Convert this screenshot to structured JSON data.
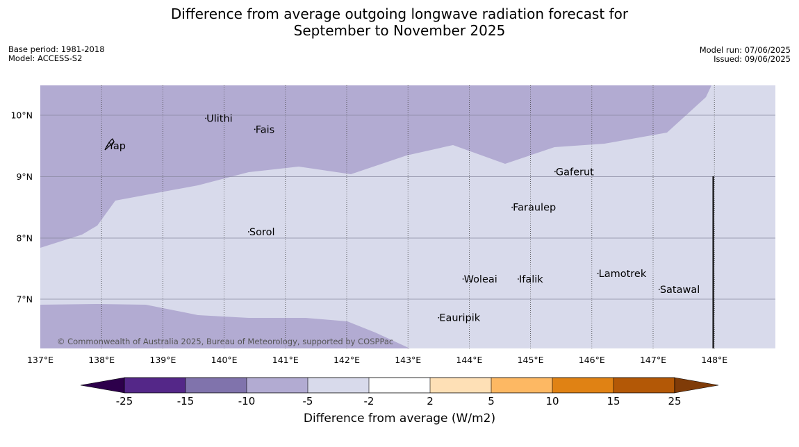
{
  "title_line1": "Difference from average outgoing longwave radiation forecast for",
  "title_line2": "September to November 2025",
  "base_period": "Base period: 1981-2018",
  "model": "Model: ACCESS-S2",
  "model_run": "Model run: 07/06/2025",
  "issued": "Issued: 09/06/2025",
  "copyright": "© Commonwealth of Australia 2025, Bureau of Meteorology, supported by COSPPac",
  "map": {
    "lon_ticks": [
      "137°E",
      "138°E",
      "139°E",
      "140°E",
      "141°E",
      "142°E",
      "143°E",
      "144°E",
      "145°E",
      "146°E",
      "147°E",
      "148°E"
    ],
    "lat_ticks": [
      "10°N",
      "9°N",
      "8°N",
      "7°N"
    ],
    "places": [
      {
        "name": "Yap",
        "lon": 138.1,
        "lat": 9.5
      },
      {
        "name": "Ulithi",
        "lon": 139.7,
        "lat": 9.95
      },
      {
        "name": "Fais",
        "lon": 140.5,
        "lat": 9.77
      },
      {
        "name": "Gaferut",
        "lon": 145.4,
        "lat": 9.08
      },
      {
        "name": "Faraulep",
        "lon": 144.7,
        "lat": 8.5
      },
      {
        "name": "Sorol",
        "lon": 140.4,
        "lat": 8.1
      },
      {
        "name": "Lamotrek",
        "lon": 146.1,
        "lat": 7.42
      },
      {
        "name": "Woleai",
        "lon": 143.9,
        "lat": 7.33
      },
      {
        "name": "Ifalik",
        "lon": 144.8,
        "lat": 7.33
      },
      {
        "name": "Satawal",
        "lon": 147.1,
        "lat": 7.16
      },
      {
        "name": "Eauripik",
        "lon": 143.5,
        "lat": 6.7
      }
    ]
  },
  "colors": {
    "lt_-25": "#2d004b",
    "-25_-15": "#542788",
    "-15_-10": "#8073ac",
    "-10_-5": "#b2abd2",
    "-5_-2": "#d8daeb",
    "-2_2": "#ffffff",
    "2_5": "#fee0b6",
    "5_10": "#fdb863",
    "10_15": "#e08214",
    "15_25": "#b35806",
    "gt_25": "#7f3b08"
  },
  "colorbar": {
    "labels": [
      "-25",
      "-15",
      "-10",
      "-5",
      "-2",
      "2",
      "5",
      "10",
      "15",
      "25"
    ],
    "title": "Difference from average (W/m2)"
  }
}
